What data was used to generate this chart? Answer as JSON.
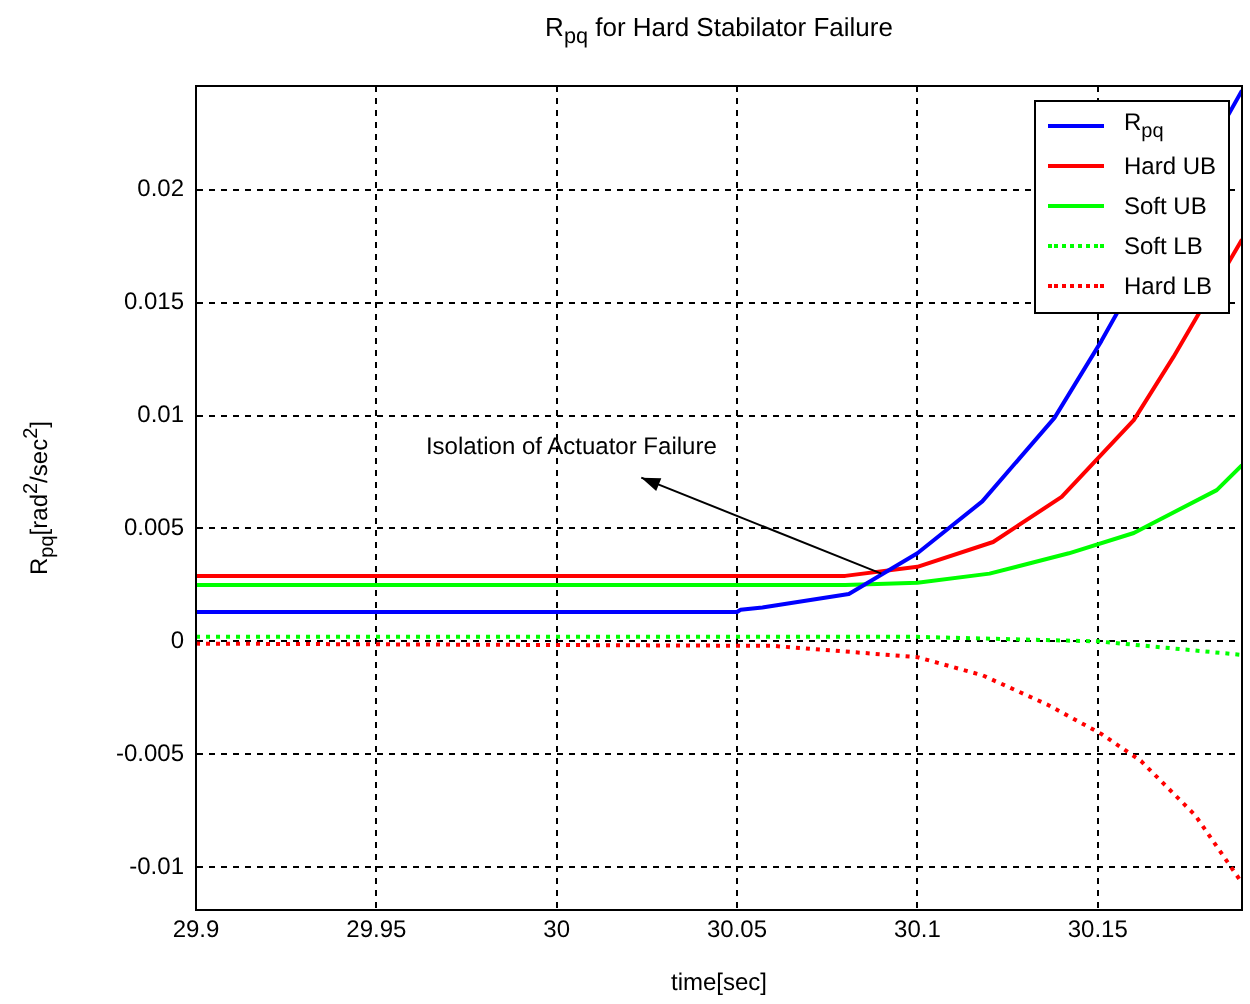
{
  "chart_data": {
    "type": "line",
    "title": "R$_{pq}$ for Hard Stabilator Failure",
    "xlabel": "time[sec]",
    "ylabel": "R$_{pq}$[rad$^{2}$/sec$^{2}$]",
    "xlim": [
      29.9,
      30.19
    ],
    "ylim": [
      -0.0119,
      0.0246
    ],
    "xticks": [
      29.9,
      29.95,
      30,
      30.05,
      30.1,
      30.15
    ],
    "yticks": [
      -0.01,
      -0.005,
      0,
      0.005,
      0.01,
      0.015,
      0.02
    ],
    "grid": true,
    "legend": "top right",
    "marker": "none",
    "annotations": [
      {
        "text": "Isolation of Actuator Failure",
        "x": 30.09,
        "y": 0.003
      }
    ],
    "series": [
      {
        "name": "R$_{pq}$",
        "color": "#0000ff",
        "line_style": "solid",
        "x": [
          29.9,
          30.05,
          30.051,
          30.057,
          30.081,
          30.1,
          30.118,
          30.138,
          30.151,
          30.19
        ],
        "values": [
          0.0013,
          0.0013,
          0.0014,
          0.0015,
          0.0021,
          0.0039,
          0.0062,
          0.0099,
          0.0133,
          0.0244
        ]
      },
      {
        "name": "Hard UB",
        "color": "#ff0000",
        "line_style": "solid",
        "x": [
          29.9,
          30.08,
          30.1,
          30.121,
          30.14,
          30.16,
          30.171,
          30.19
        ],
        "values": [
          0.0029,
          0.0029,
          0.0033,
          0.0044,
          0.0064,
          0.0098,
          0.0126,
          0.0178
        ]
      },
      {
        "name": "Soft UB",
        "color": "#00ff00",
        "line_style": "solid",
        "x": [
          29.9,
          30.08,
          30.1,
          30.12,
          30.142,
          30.16,
          30.183,
          30.19
        ],
        "values": [
          0.0025,
          0.0025,
          0.0026,
          0.003,
          0.0039,
          0.0048,
          0.0067,
          0.0078
        ]
      },
      {
        "name": "Soft LB",
        "color": "#00ff00",
        "line_style": "dotted",
        "x": [
          29.9,
          30.1,
          30.15,
          30.17,
          30.19
        ],
        "values": [
          0.0002,
          0.0002,
          0.0,
          -0.0003,
          -0.0006
        ]
      },
      {
        "name": "Hard LB",
        "color": "#ff0000",
        "line_style": "dotted",
        "x": [
          29.9,
          30.06,
          30.1,
          30.118,
          30.136,
          30.151,
          30.162,
          30.177,
          30.19
        ],
        "values": [
          -0.0001,
          -0.0002,
          -0.0007,
          -0.0015,
          -0.0028,
          -0.0041,
          -0.0053,
          -0.0077,
          -0.0107
        ]
      }
    ]
  }
}
